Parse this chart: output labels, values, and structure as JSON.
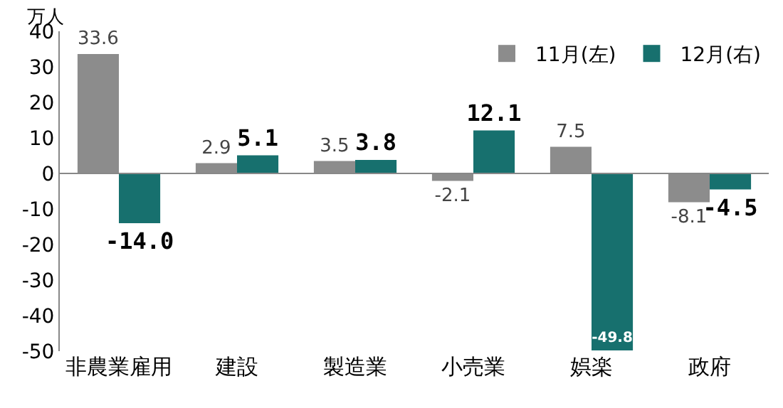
{
  "chart_data": {
    "type": "bar",
    "ylabel": "万人",
    "categories": [
      "非農業雇用",
      "建設",
      "製造業",
      "小売業",
      "娯楽",
      "政府"
    ],
    "series": [
      {
        "name": "11月(左)",
        "color": "#8c8c8c",
        "values": [
          33.6,
          2.9,
          3.5,
          -2.1,
          7.5,
          -8.1
        ],
        "value_labels": [
          "33.6",
          "2.9",
          "3.5",
          "-2.1",
          "7.5",
          "-8.1"
        ]
      },
      {
        "name": "12月(右)",
        "color": "#17706e",
        "values": [
          -14.0,
          5.1,
          3.8,
          12.1,
          -49.8,
          -4.5
        ],
        "value_labels": [
          "-14.0",
          "5.1",
          "3.8",
          "12.1",
          "-49.8",
          "-4.5"
        ]
      }
    ],
    "ylim": [
      -50,
      40
    ],
    "yticks": [
      -50,
      -40,
      -30,
      -20,
      -10,
      0,
      10,
      20,
      30,
      40
    ],
    "legend": "top right"
  }
}
